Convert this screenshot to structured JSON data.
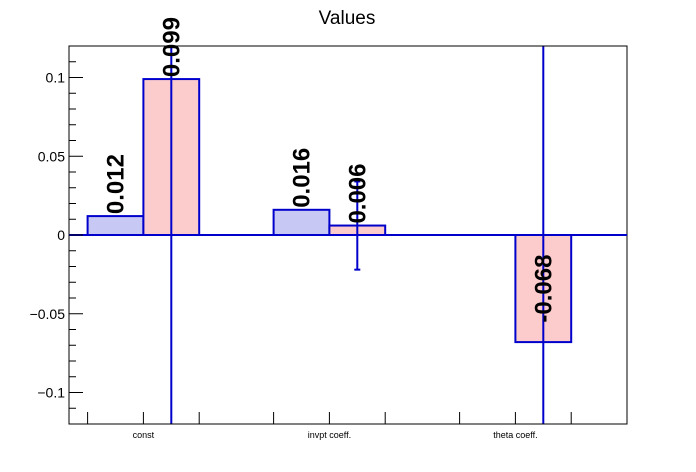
{
  "chart_data": {
    "type": "bar",
    "title": "Values",
    "categories": [
      "const",
      "invpt coeff.",
      "theta coeff."
    ],
    "ylim": [
      -0.12,
      0.12
    ],
    "yticks": [
      {
        "value": 0.1,
        "label": "0.1"
      },
      {
        "value": 0.05,
        "label": "0.05"
      },
      {
        "value": 0,
        "label": "0"
      },
      {
        "value": -0.05,
        "label": "−0.05"
      },
      {
        "value": -0.1,
        "label": "−0.1"
      }
    ],
    "grid": false,
    "legend": "none",
    "series": [
      {
        "color": "#c8c8f5",
        "edge_color": "#0000cc",
        "values": [
          0.012,
          0.016,
          null
        ],
        "errors": [
          null,
          null,
          null
        ],
        "labels": [
          "0.012",
          "0.016",
          ""
        ]
      },
      {
        "color": "#fccbcb",
        "edge_color": "#0000cc",
        "values": [
          0.099,
          0.006,
          -0.068
        ],
        "errors": [
          0.36,
          0.028,
          0.37
        ],
        "labels": [
          "0.099",
          "0.006",
          "-0.068"
        ]
      }
    ],
    "axis_color": "#0000cc"
  }
}
